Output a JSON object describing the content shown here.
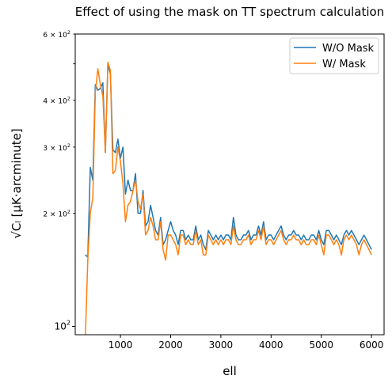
{
  "chart_data": {
    "type": "line",
    "title": "Effect of using the mask on TT spectrum calculation",
    "xlabel": "ell",
    "ylabel": "√Cₗ  [μK·arcminute]",
    "xlim": [
      100,
      6250
    ],
    "ylim": [
      95,
      600
    ],
    "yscale": "log",
    "grid": false,
    "legend_position": "top-right",
    "x_ticks": [
      {
        "value": 1000,
        "label": "1000"
      },
      {
        "value": 2000,
        "label": "2000"
      },
      {
        "value": 3000,
        "label": "3000"
      },
      {
        "value": 4000,
        "label": "4000"
      },
      {
        "value": 5000,
        "label": "5000"
      },
      {
        "value": 6000,
        "label": "6000"
      }
    ],
    "y_ticks": [
      {
        "value": 100,
        "base": "10",
        "exp": "2",
        "coef": ""
      },
      {
        "value": 200,
        "base": "10",
        "exp": "2",
        "coef": "2 × "
      },
      {
        "value": 300,
        "base": "10",
        "exp": "2",
        "coef": "3 × "
      },
      {
        "value": 400,
        "base": "10",
        "exp": "2",
        "coef": "4 × "
      },
      {
        "value": 600,
        "base": "10",
        "exp": "2",
        "coef": "6 × "
      }
    ],
    "y_minor_ticks": [
      500
    ],
    "series": [
      {
        "name": "W/O Mask",
        "color": "#1f77b4",
        "x": [
          300,
          350,
          400,
          450,
          500,
          550,
          600,
          650,
          700,
          750,
          800,
          850,
          900,
          950,
          1000,
          1050,
          1100,
          1150,
          1200,
          1250,
          1300,
          1350,
          1400,
          1450,
          1500,
          1550,
          1600,
          1650,
          1700,
          1750,
          1800,
          1850,
          1900,
          1950,
          2000,
          2050,
          2100,
          2150,
          2200,
          2250,
          2300,
          2350,
          2400,
          2450,
          2500,
          2550,
          2600,
          2650,
          2700,
          2750,
          2800,
          2850,
          2900,
          2950,
          3000,
          3050,
          3100,
          3150,
          3200,
          3250,
          3300,
          3350,
          3400,
          3450,
          3500,
          3550,
          3600,
          3650,
          3700,
          3750,
          3800,
          3850,
          3900,
          3950,
          4000,
          4050,
          4100,
          4150,
          4200,
          4250,
          4300,
          4350,
          4400,
          4450,
          4500,
          4550,
          4600,
          4650,
          4700,
          4750,
          4800,
          4850,
          4900,
          4950,
          5000,
          5050,
          5100,
          5150,
          5200,
          5250,
          5300,
          5350,
          5400,
          5450,
          5500,
          5550,
          5600,
          5650,
          5700,
          5750,
          5800,
          5850,
          5900,
          5950,
          6000
        ],
        "values": [
          155,
          153,
          265,
          245,
          440,
          425,
          430,
          445,
          290,
          500,
          470,
          295,
          290,
          315,
          280,
          300,
          225,
          245,
          230,
          230,
          255,
          200,
          200,
          230,
          185,
          190,
          210,
          195,
          180,
          175,
          195,
          165,
          170,
          180,
          190,
          180,
          175,
          165,
          180,
          180,
          170,
          175,
          170,
          170,
          185,
          170,
          175,
          165,
          160,
          180,
          175,
          170,
          175,
          170,
          175,
          170,
          175,
          175,
          170,
          195,
          175,
          170,
          170,
          175,
          175,
          180,
          170,
          175,
          175,
          185,
          175,
          190,
          170,
          175,
          175,
          170,
          175,
          180,
          185,
          175,
          170,
          175,
          175,
          180,
          175,
          175,
          170,
          175,
          170,
          170,
          175,
          175,
          170,
          180,
          170,
          165,
          180,
          180,
          175,
          170,
          175,
          170,
          165,
          175,
          180,
          175,
          180,
          175,
          170,
          165,
          170,
          175,
          170,
          165,
          160
        ]
      },
      {
        "name": "W/ Mask",
        "color": "#ff7f0e",
        "x": [
          300,
          350,
          400,
          450,
          500,
          550,
          600,
          650,
          700,
          750,
          800,
          850,
          900,
          950,
          1000,
          1050,
          1100,
          1150,
          1200,
          1250,
          1300,
          1350,
          1400,
          1450,
          1500,
          1550,
          1600,
          1650,
          1700,
          1750,
          1800,
          1850,
          1900,
          1950,
          2000,
          2050,
          2100,
          2150,
          2200,
          2250,
          2300,
          2350,
          2400,
          2450,
          2500,
          2550,
          2600,
          2650,
          2700,
          2750,
          2800,
          2850,
          2900,
          2950,
          3000,
          3050,
          3100,
          3150,
          3200,
          3250,
          3300,
          3350,
          3400,
          3450,
          3500,
          3550,
          3600,
          3650,
          3700,
          3750,
          3800,
          3850,
          3900,
          3950,
          4000,
          4050,
          4100,
          4150,
          4200,
          4250,
          4300,
          4350,
          4400,
          4450,
          4500,
          4550,
          4600,
          4650,
          4700,
          4750,
          4800,
          4850,
          4900,
          4950,
          5000,
          5050,
          5100,
          5150,
          5200,
          5250,
          5300,
          5350,
          5400,
          5450,
          5500,
          5550,
          5600,
          5650,
          5700,
          5750,
          5800,
          5850,
          5900,
          5950,
          6000
        ],
        "values": [
          92,
          150,
          200,
          220,
          420,
          485,
          440,
          410,
          290,
          505,
          480,
          255,
          260,
          300,
          275,
          240,
          190,
          210,
          215,
          230,
          245,
          215,
          205,
          225,
          175,
          180,
          195,
          185,
          170,
          170,
          190,
          160,
          150,
          175,
          175,
          170,
          165,
          155,
          175,
          175,
          165,
          170,
          165,
          165,
          180,
          165,
          170,
          155,
          155,
          175,
          170,
          165,
          170,
          165,
          170,
          165,
          170,
          170,
          165,
          185,
          170,
          165,
          165,
          170,
          170,
          175,
          165,
          170,
          170,
          180,
          170,
          185,
          165,
          170,
          170,
          165,
          170,
          175,
          180,
          170,
          165,
          170,
          170,
          175,
          170,
          170,
          165,
          170,
          165,
          165,
          170,
          170,
          165,
          175,
          165,
          155,
          175,
          175,
          170,
          165,
          170,
          165,
          155,
          170,
          175,
          170,
          175,
          170,
          165,
          155,
          165,
          170,
          165,
          160,
          155
        ]
      }
    ]
  }
}
